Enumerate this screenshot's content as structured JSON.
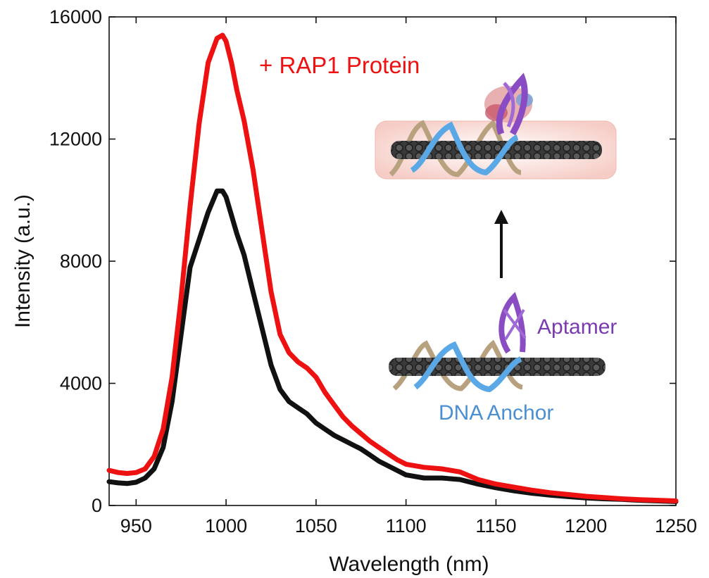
{
  "chart_data": {
    "type": "line",
    "xlabel": "Wavelength (nm)",
    "ylabel": "Intensity (a.u.)",
    "xlim": [
      935,
      1250
    ],
    "ylim": [
      0,
      16000
    ],
    "x_ticks": [
      "950",
      "1000",
      "1050",
      "1100",
      "1150",
      "1200",
      "1250"
    ],
    "y_ticks": [
      "0",
      "4000",
      "8000",
      "12000",
      "16000"
    ],
    "grid": false,
    "series": [
      {
        "name": "+ RAP1 Protein",
        "color": "#ee1111",
        "x": [
          935,
          940,
          945,
          950,
          955,
          960,
          965,
          970,
          975,
          980,
          985,
          990,
          995,
          998,
          1000,
          1003,
          1006,
          1010,
          1015,
          1020,
          1025,
          1030,
          1035,
          1040,
          1045,
          1050,
          1055,
          1060,
          1065,
          1070,
          1075,
          1080,
          1085,
          1090,
          1095,
          1100,
          1110,
          1120,
          1130,
          1140,
          1150,
          1160,
          1170,
          1180,
          1190,
          1200,
          1210,
          1220,
          1230,
          1240,
          1250
        ],
        "y": [
          1150,
          1080,
          1050,
          1080,
          1200,
          1600,
          2500,
          4200,
          6800,
          9800,
          12500,
          14500,
          15300,
          15400,
          15200,
          14500,
          13600,
          12600,
          11000,
          9000,
          7000,
          5600,
          5000,
          4700,
          4500,
          4200,
          3700,
          3300,
          2900,
          2600,
          2350,
          2100,
          1900,
          1700,
          1500,
          1350,
          1250,
          1200,
          1100,
          850,
          700,
          600,
          500,
          420,
          360,
          300,
          260,
          220,
          190,
          170,
          150
        ]
      },
      {
        "name": "",
        "color": "#111111",
        "x": [
          935,
          940,
          945,
          950,
          955,
          960,
          965,
          970,
          975,
          980,
          985,
          990,
          995,
          998,
          1000,
          1003,
          1006,
          1010,
          1015,
          1020,
          1025,
          1030,
          1035,
          1040,
          1045,
          1050,
          1055,
          1060,
          1065,
          1070,
          1075,
          1080,
          1085,
          1090,
          1095,
          1100,
          1110,
          1120,
          1130,
          1140,
          1150,
          1160,
          1170,
          1180,
          1190,
          1200,
          1210,
          1220,
          1230,
          1240,
          1250
        ],
        "y": [
          780,
          740,
          720,
          760,
          900,
          1200,
          1900,
          3400,
          5600,
          7800,
          8700,
          9600,
          10300,
          10300,
          10100,
          9500,
          8900,
          8200,
          7000,
          5800,
          4600,
          3800,
          3400,
          3200,
          3000,
          2700,
          2500,
          2300,
          2150,
          2000,
          1850,
          1650,
          1450,
          1300,
          1150,
          1000,
          900,
          900,
          850,
          700,
          580,
          480,
          400,
          340,
          290,
          250,
          220,
          200,
          170,
          150,
          130
        ]
      }
    ],
    "annotations": {
      "protein_label": "+ RAP1 Protein",
      "aptamer_label": "Aptamer",
      "anchor_label": "DNA Anchor"
    },
    "colors": {
      "protein_label": "#ee1111",
      "aptamer_label": "#7b3bb0",
      "anchor_label": "#4a90d0"
    }
  }
}
